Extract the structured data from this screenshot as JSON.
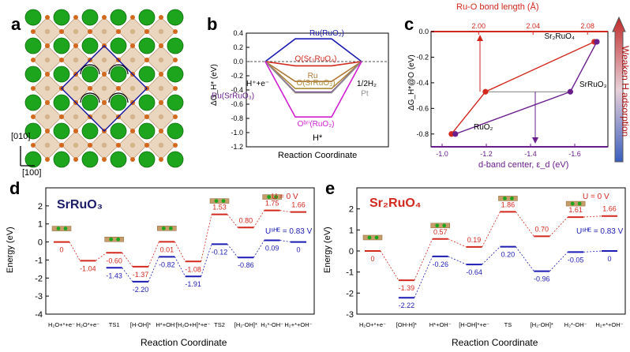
{
  "panels": {
    "a": {
      "letter": "a",
      "dir_y": "[010]",
      "dir_x": "[100]",
      "colors": {
        "sr": "#1ea51e",
        "ru": "#d4b48c",
        "o": "#d2691e",
        "cell": "#1010a0"
      }
    },
    "b": {
      "letter": "b",
      "ylabel": "ΔG_H* (eV)",
      "xlabel": "Reaction Coordinate",
      "left_label": "H⁺+e⁻",
      "right_label": "1/2H₂",
      "bottom_label": "H*"
    },
    "c": {
      "letter": "c",
      "top_label": "Ru-O bond length (Å)",
      "xlabel": "d-band center, ε_d (eV)",
      "ylabel": "ΔG_H*@O (eV)",
      "arrow_text": "Weaken H adsorption"
    },
    "d": {
      "letter": "d",
      "title": "SrRuO₃",
      "xlabel": "Reaction Coordinate",
      "ylabel": "Energy (eV)"
    },
    "e": {
      "letter": "e",
      "title": "Sr₂RuO₄",
      "xlabel": "Reaction Coordinate",
      "ylabel": "Energy (eV)"
    }
  },
  "chart_data": [
    {
      "id": "b",
      "type": "line",
      "title": "",
      "xlabel": "Reaction Coordinate",
      "ylabel": "ΔG_H* (eV)",
      "ylim": [
        -1.2,
        0.4
      ],
      "yticks": [
        "0.4",
        "0.2",
        "0.0",
        "-0.2",
        "-0.4",
        "-0.6",
        "-0.8",
        "-1.0",
        "-1.2"
      ],
      "series": [
        {
          "name": "Ru(RuO₂)",
          "value": 0.32,
          "color": "#1c1cb4"
        },
        {
          "name": "O(Sr₂RuO₄)",
          "value": -0.06,
          "color": "#d2281e"
        },
        {
          "name": "Ru",
          "value": -0.28,
          "color": "#b07838"
        },
        {
          "name": "O(SrRuO₃)",
          "value": -0.38,
          "color": "#b08a3c"
        },
        {
          "name": "Ru(SrRuO₃)",
          "value": -0.43,
          "color": "#6a1e8c"
        },
        {
          "name": "Pt",
          "value": -0.44,
          "color": "#909090"
        },
        {
          "name": "O^bri(RuO₂)",
          "value": -0.78,
          "color": "#d21ed2"
        }
      ]
    },
    {
      "id": "c",
      "type": "line",
      "xlabel": "d-band center, ε_d (eV)",
      "ylabel": "ΔG_H*@O (eV)",
      "top_xlabel": "Ru-O bond length (Å)",
      "xlim_bottom": [
        -0.95,
        -1.75
      ],
      "xticks_bottom": [
        "-1.0",
        "-1.2",
        "-1.4",
        "-1.6"
      ],
      "xlim_top": [
        1.965,
        2.095
      ],
      "xticks_top": [
        "2.00",
        "2.04",
        "2.08"
      ],
      "ylim": [
        -0.9,
        0.0
      ],
      "yticks": [
        "0.0",
        "-0.2",
        "-0.4",
        "-0.6",
        "-0.8"
      ],
      "series": [
        {
          "name": "Ru-O bond length",
          "axis": "top",
          "color": "#d2281e",
          "x": [
            1.98,
            2.005,
            2.085
          ],
          "y": [
            -0.8,
            -0.47,
            -0.08
          ]
        },
        {
          "name": "d-band center",
          "axis": "bottom",
          "color": "#6a1e8c",
          "x": [
            -1.06,
            -1.58,
            -1.7
          ],
          "y": [
            -0.8,
            -0.47,
            -0.08
          ]
        }
      ],
      "labels": [
        "Sr₂RuO₄",
        "SrRuO₃",
        "RuO₂"
      ]
    },
    {
      "id": "d",
      "type": "line",
      "title": "SrRuO₃",
      "xlabel": "Reaction Coordinate",
      "ylabel": "Energy (eV)",
      "ylim": [
        -4,
        3
      ],
      "yticks": [
        "2",
        "1",
        "0",
        "-1",
        "-2",
        "-3",
        "-4"
      ],
      "categories": [
        "H₂O+*+e⁻",
        "H₂O*+e⁻",
        "TS1",
        "[H-OH]*",
        "H*+OH⁻",
        "[H₂O+H]*+e⁻",
        "TS2",
        "[H₂-OH]*",
        "H₂*-OH⁻",
        "H₂+*+OH⁻"
      ],
      "series": [
        {
          "name": "U = 0 V",
          "color": "#d2281e",
          "values": [
            0,
            -1.04,
            -0.6,
            -1.37,
            0.01,
            -1.08,
            1.53,
            0.8,
            1.75,
            1.66
          ],
          "labels": [
            "0",
            "-1.04",
            "-0.60",
            "-1.37",
            "0.01",
            "-1.08",
            "1.53",
            "0.80",
            "1.75",
            "1.66"
          ]
        },
        {
          "name": "U^SHE = 0.83 V",
          "color": "#1c1cb4",
          "values": [
            null,
            null,
            -1.43,
            -2.2,
            -0.82,
            -1.91,
            -0.12,
            -0.86,
            0.09,
            0
          ],
          "labels": [
            "",
            "",
            "-1.43",
            "-2.20",
            "-0.82",
            "-1.91",
            "-0.12",
            "-0.86",
            "0.09",
            "0"
          ]
        }
      ],
      "legend": [
        "U = 0 V",
        "U^SHE = 0.83 V"
      ]
    },
    {
      "id": "e",
      "type": "line",
      "title": "Sr₂RuO₄",
      "xlabel": "Reaction Coordinate",
      "ylabel": "Energy (eV)",
      "ylim": [
        -3,
        3
      ],
      "yticks": [
        "2",
        "1",
        "0",
        "-1",
        "-2",
        "-3"
      ],
      "categories": [
        "H₂O+*+e⁻",
        "[OH-H]*",
        "H*+OH⁻",
        "[H-OH]*+e⁻",
        "TS",
        "[H₂-OH]*",
        "H₂*-OH⁻",
        "H₂+*+OH⁻"
      ],
      "series": [
        {
          "name": "U = 0 V",
          "color": "#d2281e",
          "values": [
            0,
            -1.39,
            0.57,
            0.19,
            1.86,
            0.7,
            1.61,
            1.66
          ],
          "labels": [
            "0",
            "-1.39",
            "0.57",
            "0.19",
            "1.86",
            "0.70",
            "1.61",
            "1.66"
          ]
        },
        {
          "name": "U^SHE = 0.83 V",
          "color": "#1c1cb4",
          "values": [
            null,
            -2.22,
            -0.26,
            -0.64,
            0.2,
            -0.96,
            -0.05,
            0
          ],
          "labels": [
            "",
            "-2.22",
            "-0.26",
            "-0.64",
            "0.20",
            "-0.96",
            "-0.05",
            "0"
          ]
        }
      ],
      "legend": [
        "U = 0 V",
        "U^SHE = 0.83 V"
      ]
    }
  ]
}
